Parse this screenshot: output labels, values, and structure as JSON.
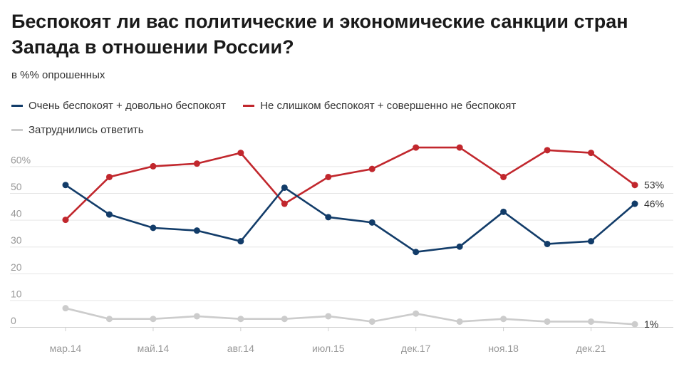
{
  "title": "Беспокоят ли вас политические и экономические санкции стран Запада в отношении России?",
  "subtitle": "в %% опрошенных",
  "colors": {
    "blue": "#123c69",
    "red": "#c1272d",
    "gray": "#cccccc",
    "axis_text": "#999999",
    "grid": "#e6e6e6"
  },
  "chart_data": {
    "type": "line",
    "title": "Беспокоят ли вас политические и экономические санкции стран Запада в отношении России?",
    "ylabel": "",
    "xlabel": "",
    "ylim": [
      0,
      60
    ],
    "y_ticks": [
      {
        "value": 0,
        "label": "0"
      },
      {
        "value": 10,
        "label": "10"
      },
      {
        "value": 20,
        "label": "20"
      },
      {
        "value": 30,
        "label": "30"
      },
      {
        "value": 40,
        "label": "40"
      },
      {
        "value": 50,
        "label": "50"
      },
      {
        "value": 60,
        "label": "60%"
      }
    ],
    "x_tick_labels": [
      "мар.14",
      "май.14",
      "авг.14",
      "июл.15",
      "дек.17",
      "ноя.18",
      "дек.21"
    ],
    "categories": [
      "мар.14",
      "",
      "май.14",
      "",
      "авг.14",
      "",
      "июл.15",
      "",
      "дек.17",
      "",
      "ноя.18",
      "",
      "дек.21",
      ""
    ],
    "grid": true,
    "legend_placement": "top",
    "series": [
      {
        "name": "Очень беспокоят + довольно беспокоят",
        "color": "#123c69",
        "values": [
          53,
          42,
          37,
          36,
          32,
          52,
          41,
          39,
          28,
          30,
          43,
          31,
          32,
          46
        ],
        "end_label": "46%"
      },
      {
        "name": "Не слишком беспокоят + совершенно не беспокоят",
        "color": "#c1272d",
        "values": [
          40,
          56,
          60,
          61,
          65,
          46,
          56,
          59,
          67,
          67,
          56,
          66,
          65,
          53
        ],
        "end_label": "53%"
      },
      {
        "name": "Затруднились ответить",
        "color": "#cccccc",
        "values": [
          7,
          3,
          3,
          4,
          3,
          3,
          4,
          2,
          5,
          2,
          3,
          2,
          2,
          1
        ],
        "end_label": "1%"
      }
    ]
  }
}
